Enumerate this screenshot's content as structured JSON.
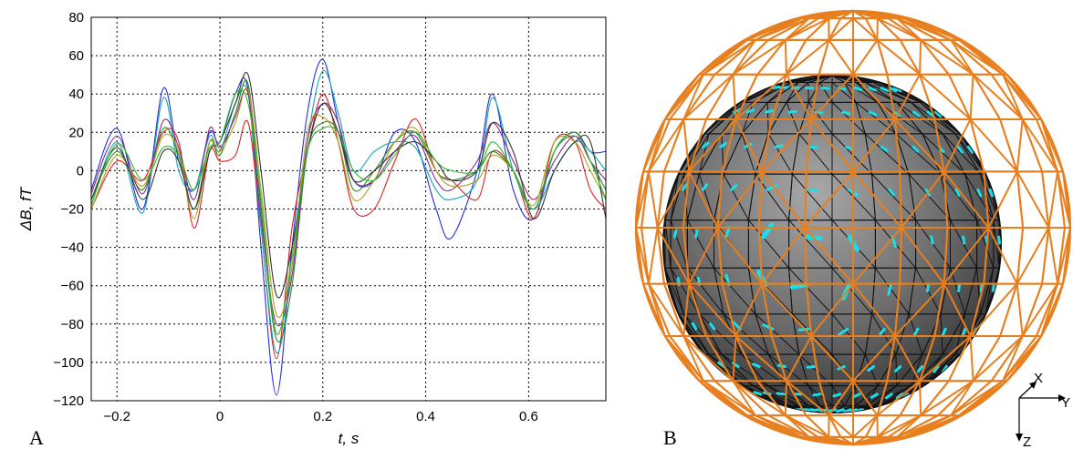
{
  "panel_labels": {
    "a": "A",
    "b": "B"
  },
  "chart_data": {
    "type": "line",
    "xlabel": "t, s",
    "ylabel": "ΔB, fT",
    "xlim": [
      -0.25,
      0.75
    ],
    "ylim": [
      -120,
      80
    ],
    "xticks": [
      -0.2,
      0,
      0.2,
      0.4,
      0.6
    ],
    "xtick_labels": [
      "−0.2",
      "0",
      "0.2",
      "0.4",
      "0.6"
    ],
    "yticks": [
      80,
      60,
      40,
      20,
      0,
      -20,
      -40,
      -60,
      -80,
      -100,
      -120
    ],
    "ytick_labels": [
      "80",
      "60",
      "40",
      "20",
      "0",
      "−20",
      "−40",
      "−60",
      "−80",
      "−100",
      "−120"
    ],
    "grid": true,
    "x": [
      -0.25,
      -0.2,
      -0.15,
      -0.11,
      -0.08,
      -0.05,
      -0.02,
      0.0,
      0.03,
      0.055,
      0.08,
      0.11,
      0.14,
      0.17,
      0.2,
      0.23,
      0.26,
      0.3,
      0.34,
      0.38,
      0.42,
      0.45,
      0.5,
      0.53,
      0.57,
      0.61,
      0.65,
      0.69,
      0.72,
      0.75
    ],
    "series": [
      {
        "color": "#1f2fe0",
        "values": [
          -10,
          22,
          -20,
          43,
          5,
          -10,
          20,
          15,
          40,
          42,
          -40,
          -117,
          -40,
          30,
          58,
          25,
          -5,
          -5,
          20,
          15,
          -20,
          -35,
          0,
          40,
          -10,
          -25,
          10,
          20,
          10,
          10
        ]
      },
      {
        "color": "#e02020",
        "values": [
          -20,
          5,
          -5,
          20,
          15,
          -30,
          10,
          5,
          8,
          25,
          -30,
          -98,
          -30,
          10,
          40,
          15,
          -20,
          -20,
          5,
          27,
          0,
          -5,
          -15,
          10,
          0,
          -25,
          15,
          15,
          -10,
          -20
        ]
      },
      {
        "color": "#17a6b0",
        "values": [
          -18,
          15,
          -22,
          38,
          0,
          -10,
          18,
          10,
          35,
          40,
          -30,
          -95,
          -50,
          15,
          52,
          30,
          0,
          10,
          15,
          12,
          -10,
          -15,
          -5,
          38,
          0,
          -20,
          0,
          15,
          10,
          0
        ]
      },
      {
        "color": "#2a8a2a",
        "values": [
          -15,
          10,
          -10,
          22,
          8,
          -20,
          15,
          8,
          30,
          45,
          -20,
          -88,
          -60,
          10,
          25,
          20,
          -10,
          0,
          15,
          20,
          0,
          -5,
          0,
          10,
          0,
          -20,
          10,
          18,
          5,
          -10
        ]
      },
      {
        "color": "#8a2b8a",
        "values": [
          -12,
          18,
          -12,
          26,
          12,
          -15,
          22,
          12,
          28,
          40,
          -25,
          -80,
          -55,
          15,
          35,
          25,
          -5,
          -5,
          10,
          18,
          -5,
          -10,
          5,
          25,
          5,
          -15,
          5,
          18,
          5,
          -5
        ]
      },
      {
        "color": "#b0a020",
        "values": [
          -20,
          8,
          -8,
          18,
          10,
          -25,
          15,
          10,
          25,
          42,
          -10,
          -75,
          -50,
          20,
          28,
          15,
          -15,
          -5,
          15,
          22,
          0,
          -8,
          -5,
          8,
          0,
          -18,
          15,
          15,
          0,
          -15
        ]
      },
      {
        "color": "#333333",
        "values": [
          -15,
          12,
          -15,
          10,
          5,
          -20,
          10,
          15,
          35,
          50,
          0,
          -65,
          -40,
          10,
          35,
          20,
          -5,
          0,
          10,
          15,
          5,
          -5,
          0,
          25,
          10,
          -25,
          0,
          15,
          15,
          -25
        ]
      },
      {
        "color": "#2db82d",
        "values": [
          -18,
          14,
          -5,
          12,
          8,
          -10,
          12,
          15,
          40,
          35,
          -15,
          -85,
          -45,
          10,
          22,
          20,
          0,
          -5,
          8,
          20,
          5,
          0,
          0,
          15,
          0,
          -20,
          10,
          20,
          5,
          -15
        ]
      }
    ]
  },
  "figure_b": {
    "sphere_color": "#707070",
    "mesh_color": "#e87f1e",
    "arrow_color": "#17e0ee",
    "axes": {
      "x": "X",
      "y": "Y",
      "z": "Z"
    }
  }
}
